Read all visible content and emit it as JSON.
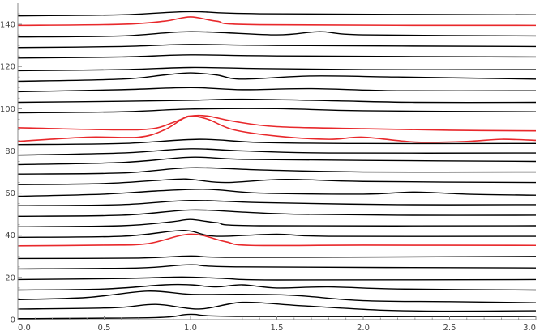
{
  "chart_data": {
    "type": "line",
    "title": "",
    "xlabel": "",
    "ylabel": "",
    "xlim": [
      0,
      3
    ],
    "ylim": [
      0,
      150
    ],
    "grid": false,
    "legend": "none",
    "x_ticks": [
      0.0,
      0.5,
      1.0,
      1.5,
      2.0,
      2.5,
      3.0
    ],
    "x_tick_labels": [
      "0.0",
      "0.5",
      "1.0",
      "1.5",
      "2.0",
      "2.5",
      "3.0"
    ],
    "y_ticks": [
      0,
      20,
      40,
      60,
      80,
      100,
      120,
      140
    ],
    "y_tick_labels": [
      "0",
      "20",
      "40",
      "60",
      "80",
      "100",
      "120",
      "140"
    ],
    "colors": {
      "black": "#000000",
      "red": "#e8282b",
      "axis": "#888888"
    },
    "series": [
      {
        "color": "black",
        "points": [
          [
            0,
            0.5
          ],
          [
            0.8,
            1.0
          ],
          [
            1.0,
            2.5
          ],
          [
            1.3,
            1.5
          ],
          [
            3,
            1.5
          ]
        ]
      },
      {
        "color": "black",
        "points": [
          [
            0,
            5
          ],
          [
            0.55,
            5.6
          ],
          [
            0.8,
            7.2
          ],
          [
            1.05,
            5
          ],
          [
            1.3,
            8.2
          ],
          [
            1.6,
            6.8
          ],
          [
            2.1,
            4.5
          ],
          [
            2.5,
            4
          ],
          [
            3,
            4.2
          ]
        ]
      },
      {
        "color": "black",
        "points": [
          [
            0,
            9.5
          ],
          [
            0.4,
            10.5
          ],
          [
            0.75,
            13.5
          ],
          [
            1.0,
            12
          ],
          [
            1.3,
            12
          ],
          [
            1.6,
            11.5
          ],
          [
            2.0,
            9
          ],
          [
            2.5,
            8.5
          ],
          [
            3,
            8
          ]
        ]
      },
      {
        "color": "black",
        "points": [
          [
            0,
            14
          ],
          [
            0.5,
            14.5
          ],
          [
            0.85,
            16.5
          ],
          [
            1.0,
            16.5
          ],
          [
            1.15,
            15.5
          ],
          [
            1.3,
            16.5
          ],
          [
            1.5,
            15
          ],
          [
            1.8,
            15.5
          ],
          [
            2.2,
            14.5
          ],
          [
            3,
            14
          ]
        ]
      },
      {
        "color": "black",
        "points": [
          [
            0,
            19
          ],
          [
            0.6,
            19.5
          ],
          [
            0.95,
            20.2
          ],
          [
            1.2,
            19.5
          ],
          [
            1.5,
            18.8
          ],
          [
            3,
            19
          ]
        ]
      },
      {
        "color": "black",
        "points": [
          [
            0,
            24
          ],
          [
            0.7,
            24.5
          ],
          [
            1.0,
            26
          ],
          [
            1.3,
            25
          ],
          [
            3,
            24.5
          ]
        ]
      },
      {
        "color": "black",
        "points": [
          [
            0,
            29
          ],
          [
            0.7,
            29.2
          ],
          [
            1.0,
            30.2
          ],
          [
            1.3,
            29.5
          ],
          [
            3,
            30
          ]
        ]
      },
      {
        "color": "red",
        "points": [
          [
            0,
            35
          ],
          [
            0.5,
            35.3
          ],
          [
            0.75,
            36
          ],
          [
            1.0,
            40.5
          ],
          [
            1.2,
            37
          ],
          [
            1.35,
            35.2
          ],
          [
            2,
            35.3
          ],
          [
            3,
            35.2
          ]
        ]
      },
      {
        "color": "black",
        "points": [
          [
            0,
            39
          ],
          [
            0.6,
            39.5
          ],
          [
            0.9,
            42
          ],
          [
            1.0,
            42
          ],
          [
            1.15,
            39.5
          ],
          [
            1.5,
            40.5
          ],
          [
            1.8,
            39.5
          ],
          [
            3,
            39.5
          ]
        ]
      },
      {
        "color": "black",
        "points": [
          [
            0,
            44
          ],
          [
            0.6,
            44.5
          ],
          [
            0.9,
            46.5
          ],
          [
            1.0,
            47.5
          ],
          [
            1.15,
            46
          ],
          [
            1.4,
            44.5
          ],
          [
            3,
            44.5
          ]
        ]
      },
      {
        "color": "black",
        "points": [
          [
            0,
            49
          ],
          [
            0.6,
            49.5
          ],
          [
            1.0,
            52
          ],
          [
            1.3,
            51
          ],
          [
            1.6,
            50
          ],
          [
            2.2,
            49.5
          ],
          [
            3,
            49.5
          ]
        ]
      },
      {
        "color": "black",
        "points": [
          [
            0,
            54
          ],
          [
            0.6,
            54.5
          ],
          [
            1.0,
            56.5
          ],
          [
            1.4,
            55.5
          ],
          [
            2.2,
            54.5
          ],
          [
            3,
            54.5
          ]
        ]
      },
      {
        "color": "black",
        "points": [
          [
            0,
            58.5
          ],
          [
            0.5,
            59.5
          ],
          [
            0.8,
            61
          ],
          [
            1.1,
            61.8
          ],
          [
            1.4,
            60
          ],
          [
            2.0,
            59.5
          ],
          [
            2.3,
            60.5
          ],
          [
            2.6,
            59.5
          ],
          [
            3,
            59
          ]
        ]
      },
      {
        "color": "black",
        "points": [
          [
            0,
            64
          ],
          [
            0.5,
            64.5
          ],
          [
            0.9,
            66.5
          ],
          [
            1.0,
            66.5
          ],
          [
            1.2,
            65
          ],
          [
            1.55,
            66.5
          ],
          [
            2.0,
            65.5
          ],
          [
            3,
            65
          ]
        ]
      },
      {
        "color": "black",
        "points": [
          [
            0,
            69
          ],
          [
            0.6,
            69.5
          ],
          [
            1.0,
            72
          ],
          [
            1.4,
            71
          ],
          [
            2,
            70
          ],
          [
            3,
            70
          ]
        ]
      },
      {
        "color": "black",
        "points": [
          [
            0,
            73.5
          ],
          [
            0.6,
            74.5
          ],
          [
            1.0,
            77
          ],
          [
            1.3,
            76
          ],
          [
            2.0,
            75.5
          ],
          [
            3,
            75
          ]
        ]
      },
      {
        "color": "black",
        "points": [
          [
            0,
            78
          ],
          [
            0.6,
            79
          ],
          [
            1.0,
            81
          ],
          [
            1.3,
            80
          ],
          [
            1.8,
            79
          ],
          [
            3,
            79
          ]
        ]
      },
      {
        "color": "black",
        "points": [
          [
            0,
            83
          ],
          [
            0.6,
            83.5
          ],
          [
            1.05,
            85.5
          ],
          [
            1.4,
            84
          ],
          [
            2,
            83.5
          ],
          [
            3,
            83.5
          ]
        ]
      },
      {
        "color": "red",
        "points": [
          [
            0,
            91
          ],
          [
            0.55,
            90
          ],
          [
            0.78,
            90.5
          ],
          [
            0.9,
            93.5
          ],
          [
            1.0,
            96.5
          ],
          [
            1.1,
            96.5
          ],
          [
            1.25,
            94
          ],
          [
            1.5,
            91.5
          ],
          [
            2.0,
            90.5
          ],
          [
            2.5,
            89.8
          ],
          [
            3,
            89.5
          ]
        ]
      },
      {
        "color": "red",
        "points": [
          [
            0,
            84.5
          ],
          [
            0.4,
            86.5
          ],
          [
            0.7,
            86.5
          ],
          [
            0.85,
            90
          ],
          [
            0.95,
            95
          ],
          [
            1.0,
            96.5
          ],
          [
            1.1,
            95
          ],
          [
            1.25,
            90
          ],
          [
            1.5,
            87
          ],
          [
            1.8,
            85.5
          ],
          [
            2.0,
            86.5
          ],
          [
            2.3,
            84.2
          ],
          [
            2.6,
            84.5
          ],
          [
            2.8,
            85.5
          ],
          [
            3,
            85
          ]
        ]
      },
      {
        "color": "black",
        "points": [
          [
            0,
            98
          ],
          [
            0.6,
            98.5
          ],
          [
            1.0,
            99.8
          ],
          [
            1.5,
            100
          ],
          [
            2.0,
            99
          ],
          [
            3,
            98.5
          ]
        ]
      },
      {
        "color": "black",
        "points": [
          [
            0,
            103
          ],
          [
            0.6,
            103.5
          ],
          [
            1.0,
            104
          ],
          [
            1.3,
            104.5
          ],
          [
            1.8,
            103.8
          ],
          [
            2.3,
            103
          ],
          [
            3,
            103
          ]
        ]
      },
      {
        "color": "black",
        "points": [
          [
            0,
            108
          ],
          [
            0.6,
            109
          ],
          [
            1.0,
            110
          ],
          [
            1.3,
            109
          ],
          [
            1.7,
            109.5
          ],
          [
            2.2,
            108.5
          ],
          [
            3,
            108.5
          ]
        ]
      },
      {
        "color": "black",
        "points": [
          [
            0,
            113
          ],
          [
            0.6,
            114
          ],
          [
            0.85,
            116
          ],
          [
            1.0,
            117
          ],
          [
            1.15,
            116
          ],
          [
            1.3,
            114
          ],
          [
            1.7,
            115.5
          ],
          [
            2.2,
            115
          ],
          [
            3,
            114
          ]
        ]
      },
      {
        "color": "black",
        "points": [
          [
            0,
            118
          ],
          [
            0.6,
            118.5
          ],
          [
            1.0,
            119.5
          ],
          [
            1.4,
            119
          ],
          [
            2,
            118.5
          ],
          [
            3,
            118.5
          ]
        ]
      },
      {
        "color": "black",
        "points": [
          [
            0,
            124
          ],
          [
            0.6,
            124.5
          ],
          [
            1.0,
            125.5
          ],
          [
            1.5,
            125
          ],
          [
            3,
            124.5
          ]
        ]
      },
      {
        "color": "black",
        "points": [
          [
            0,
            129
          ],
          [
            0.6,
            129.5
          ],
          [
            1.0,
            130.5
          ],
          [
            1.5,
            130
          ],
          [
            3,
            129.5
          ]
        ]
      },
      {
        "color": "black",
        "points": [
          [
            0,
            134
          ],
          [
            0.6,
            134.5
          ],
          [
            1.0,
            136.5
          ],
          [
            1.5,
            135
          ],
          [
            1.75,
            136.5
          ],
          [
            2.0,
            135
          ],
          [
            3,
            134.5
          ]
        ]
      },
      {
        "color": "red",
        "points": [
          [
            0,
            139.5
          ],
          [
            0.6,
            140
          ],
          [
            0.85,
            141.5
          ],
          [
            1.0,
            143.5
          ],
          [
            1.15,
            141.5
          ],
          [
            1.4,
            139.8
          ],
          [
            3,
            139.5
          ]
        ]
      },
      {
        "color": "black",
        "points": [
          [
            0,
            144
          ],
          [
            0.6,
            144.5
          ],
          [
            1.0,
            146
          ],
          [
            1.4,
            145
          ],
          [
            3,
            144.5
          ]
        ]
      }
    ]
  }
}
